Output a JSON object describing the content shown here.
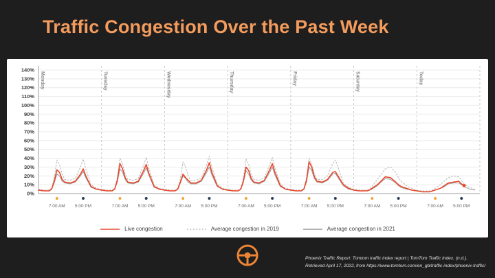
{
  "slide": {
    "title": "Traffic Congestion Over the Past Week",
    "accent_color": "#F49C5D",
    "icon_color": "#ED8536",
    "background_color": "#1E1E1E"
  },
  "citation": {
    "text": "Phoenix Traffic Report: Tomtom traffic index report | TomTom Traffic Index. (n.d.). Retrieved April 17, 2022, from https://www.tomtom.com/en_gb/traffic-index/phoenix-traffic/"
  },
  "chart_data": {
    "type": "line",
    "x_unit": "hour_of_week",
    "days": [
      "Monday",
      "Tuesday",
      "Wednesday",
      "Thursday",
      "Friday",
      "Saturday",
      "Today"
    ],
    "ylim": [
      0,
      140
    ],
    "ytick_step": 10,
    "ytick_labels": [
      "0%",
      "10%",
      "20%",
      "30%",
      "40%",
      "50%",
      "60%",
      "70%",
      "80%",
      "90%",
      "100%",
      "110%",
      "120%",
      "130%",
      "140%"
    ],
    "grid": true,
    "legend_position": "bottom",
    "time_ticks": [
      {
        "hour": 7,
        "label": "7:00 AM",
        "dot_color": "#F2A33C"
      },
      {
        "hour": 17,
        "label": "5:00 PM",
        "dot_color": "#2B3A55"
      }
    ],
    "hour_grid": [
      0,
      2,
      4,
      5,
      6,
      7,
      8,
      9,
      10,
      12,
      14,
      16,
      17,
      18,
      20,
      22
    ],
    "series": [
      {
        "name": "Live congestion",
        "color": "#E8492C",
        "style": "solid",
        "values_by_day": [
          [
            4,
            3,
            3,
            5,
            14,
            27,
            24,
            16,
            13,
            12,
            14,
            22,
            28,
            20,
            8,
            5
          ],
          [
            4,
            3,
            3,
            5,
            15,
            34,
            28,
            18,
            13,
            12,
            14,
            26,
            33,
            23,
            8,
            5
          ],
          [
            4,
            3,
            3,
            5,
            13,
            22,
            18,
            15,
            12,
            12,
            15,
            27,
            35,
            24,
            9,
            5
          ],
          [
            4,
            3,
            3,
            5,
            14,
            30,
            26,
            17,
            13,
            12,
            15,
            27,
            34,
            24,
            9,
            5
          ],
          [
            4,
            3,
            3,
            5,
            15,
            36,
            30,
            19,
            14,
            13,
            16,
            24,
            25,
            20,
            10,
            6
          ],
          [
            4,
            3,
            3,
            3,
            4,
            6,
            8,
            10,
            13,
            19,
            18,
            13,
            10,
            8,
            6,
            4
          ],
          [
            3,
            2,
            2,
            2,
            3,
            4,
            5,
            6,
            8,
            12,
            13,
            14,
            11,
            9,
            null,
            null
          ]
        ]
      },
      {
        "name": "Average congestion in 2019",
        "color": "#B3B3B3",
        "style": "dotted",
        "values_by_day": [
          [
            5,
            4,
            4,
            6,
            18,
            38,
            33,
            22,
            16,
            15,
            17,
            30,
            39,
            28,
            10,
            6
          ],
          [
            5,
            4,
            4,
            6,
            18,
            40,
            34,
            22,
            16,
            15,
            17,
            32,
            41,
            29,
            10,
            6
          ],
          [
            5,
            4,
            4,
            6,
            17,
            36,
            30,
            20,
            15,
            15,
            18,
            33,
            42,
            30,
            11,
            6
          ],
          [
            5,
            4,
            4,
            6,
            18,
            39,
            33,
            21,
            16,
            15,
            18,
            33,
            41,
            29,
            11,
            6
          ],
          [
            5,
            4,
            4,
            6,
            18,
            40,
            34,
            22,
            16,
            16,
            20,
            34,
            38,
            30,
            12,
            7
          ],
          [
            5,
            4,
            4,
            4,
            5,
            8,
            12,
            16,
            20,
            28,
            30,
            24,
            18,
            14,
            9,
            6
          ],
          [
            4,
            3,
            3,
            3,
            4,
            6,
            8,
            10,
            13,
            18,
            20,
            19,
            15,
            11,
            7,
            5
          ]
        ]
      },
      {
        "name": "Average congestion in 2021",
        "color": "#9C9C9C",
        "style": "solid",
        "values_by_day": [
          [
            4,
            3,
            3,
            5,
            12,
            22,
            20,
            14,
            12,
            11,
            13,
            20,
            25,
            18,
            7,
            5
          ],
          [
            4,
            3,
            3,
            5,
            13,
            28,
            24,
            16,
            12,
            11,
            13,
            23,
            29,
            21,
            7,
            5
          ],
          [
            4,
            3,
            3,
            5,
            12,
            20,
            17,
            13,
            11,
            11,
            14,
            24,
            30,
            21,
            8,
            5
          ],
          [
            4,
            3,
            3,
            5,
            13,
            26,
            22,
            15,
            12,
            11,
            14,
            24,
            30,
            21,
            8,
            5
          ],
          [
            4,
            3,
            3,
            5,
            13,
            30,
            26,
            17,
            13,
            12,
            15,
            22,
            23,
            18,
            9,
            5
          ],
          [
            4,
            3,
            3,
            3,
            4,
            5,
            7,
            9,
            12,
            17,
            16,
            12,
            9,
            7,
            5,
            4
          ],
          [
            3,
            2,
            2,
            2,
            3,
            4,
            5,
            6,
            7,
            11,
            12,
            12,
            10,
            8,
            5,
            4
          ]
        ]
      }
    ],
    "current_point": {
      "series": "Live congestion",
      "day_index": 6,
      "hour": 18,
      "value": 9
    }
  }
}
